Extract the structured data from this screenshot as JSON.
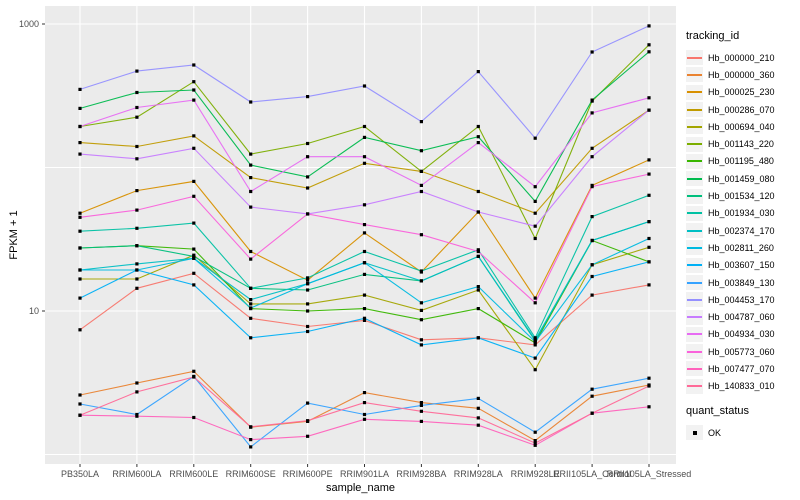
{
  "chart_data": {
    "type": "line",
    "xlabel": "sample_name",
    "ylabel": "FPKM + 1",
    "y_scale": "log10",
    "ylim": [
      0.83,
      1340
    ],
    "y_tick_labels": [
      "1000",
      "10"
    ],
    "y_tick_values": [
      1000,
      10
    ],
    "y_gridline_values": [
      1000,
      100,
      10,
      1
    ],
    "grid": "major-on",
    "panel_bg": "#EBEBEB",
    "grid_color": "#FFFFFF",
    "point_marker": "small-black-square",
    "point_color": "#000000",
    "legend_position": "right",
    "categories": [
      "PB350LA",
      "RRIM600LA",
      "RRIM600LE",
      "RRIM600SE",
      "RRIM600PE",
      "RRIM901LA",
      "RRIM928BA",
      "RRIM928LA",
      "RRIM928LE",
      "RRII105LA_Control",
      "RRII105LA_Stressed"
    ],
    "legend_title": "tracking_id",
    "legend2_title": "quant_status",
    "legend2_items": [
      {
        "label": "OK",
        "marker": "black-square"
      }
    ],
    "series": [
      {
        "name": "Hb_000000_210",
        "color": "#F8766D",
        "values": [
          7.4,
          14.4,
          18.3,
          8.9,
          7.8,
          8.6,
          6.3,
          6.5,
          5.8,
          12.9,
          15.2
        ]
      },
      {
        "name": "Hb_000000_360",
        "color": "#EA8331",
        "values": [
          2.6,
          3.15,
          3.8,
          1.55,
          1.7,
          2.7,
          2.3,
          2.1,
          1.25,
          2.55,
          3.05
        ]
      },
      {
        "name": "Hb_000025_230",
        "color": "#D89000",
        "values": [
          48,
          69,
          80,
          26,
          16.4,
          35,
          18.7,
          49,
          12.3,
          75,
          113
        ]
      },
      {
        "name": "Hb_000286_070",
        "color": "#C09B00",
        "values": [
          149,
          140,
          166,
          85,
          72,
          107,
          94,
          68,
          48,
          136,
          251
        ]
      },
      {
        "name": "Hb_000694_040",
        "color": "#A3A500",
        "values": [
          16.7,
          16.7,
          24.5,
          11.2,
          11.2,
          12.9,
          10.1,
          14,
          3.9,
          21,
          27.8
        ]
      },
      {
        "name": "Hb_001143_220",
        "color": "#7CAE00",
        "values": [
          193,
          224,
          396,
          124,
          147,
          193,
          94,
          193,
          32,
          290,
          716
        ]
      },
      {
        "name": "Hb_001195_480",
        "color": "#39B600",
        "values": [
          27.5,
          28.5,
          27,
          10.4,
          10,
          10.4,
          8.7,
          10.4,
          6.0,
          31,
          22
        ]
      },
      {
        "name": "Hb_001459_080",
        "color": "#00BB4E",
        "values": [
          258,
          333,
          347,
          104,
          86,
          162,
          131,
          164,
          58,
          295,
          640
        ]
      },
      {
        "name": "Hb_001534_120",
        "color": "#00BF7D",
        "values": [
          27.5,
          28.5,
          24,
          14.4,
          14,
          18,
          16.2,
          24,
          6.2,
          31,
          42
        ]
      },
      {
        "name": "Hb_001934_030",
        "color": "#00C1A3",
        "values": [
          36,
          37.7,
          41,
          14.4,
          17,
          26,
          19,
          26.7,
          6.5,
          45.5,
          64
        ]
      },
      {
        "name": "Hb_002374_170",
        "color": "#00BFC4",
        "values": [
          19.3,
          21.3,
          23.3,
          12,
          15.5,
          21.7,
          16.2,
          24,
          6.3,
          31,
          42
        ]
      },
      {
        "name": "Hb_002811_260",
        "color": "#00BAE0",
        "values": [
          19.3,
          19.3,
          23.3,
          10.5,
          15.5,
          21.7,
          11.4,
          14.8,
          6.1,
          21,
          32
        ]
      },
      {
        "name": "Hb_003607_150",
        "color": "#00B0F6",
        "values": [
          12.3,
          19.3,
          15.2,
          6.5,
          7.2,
          8.9,
          5.8,
          6.5,
          4.7,
          17.4,
          22
        ]
      },
      {
        "name": "Hb_003849_130",
        "color": "#35A2FF",
        "values": [
          2.25,
          1.9,
          3.5,
          1.13,
          2.28,
          1.9,
          2.2,
          2.46,
          1.43,
          2.85,
          3.4
        ]
      },
      {
        "name": "Hb_004453_170",
        "color": "#9590FF",
        "values": [
          350,
          470,
          518,
          286,
          312,
          370,
          209,
          466,
          160,
          638,
          970
        ]
      },
      {
        "name": "Hb_004787_060",
        "color": "#C77CFF",
        "values": [
          124,
          115,
          136,
          53,
          47.5,
          55,
          68,
          49,
          39,
          119,
          251
        ]
      },
      {
        "name": "Hb_004934_030",
        "color": "#E76BF3",
        "values": [
          193,
          262,
          295,
          68,
          119,
          119,
          75,
          149,
          73.5,
          240,
          306
        ]
      },
      {
        "name": "Hb_005773_060",
        "color": "#FA62DB",
        "values": [
          45,
          50.5,
          63,
          23,
          47.4,
          40,
          34,
          26,
          11.4,
          73.6,
          90
        ]
      },
      {
        "name": "Hb_007477_070",
        "color": "#FF62BC",
        "values": [
          1.88,
          1.85,
          1.81,
          1.27,
          1.34,
          1.76,
          1.7,
          1.6,
          1.16,
          1.94,
          2.15
        ]
      },
      {
        "name": "Hb_140833_010",
        "color": "#FF6A98",
        "values": [
          1.88,
          2.73,
          3.47,
          1.56,
          1.72,
          2.3,
          2.0,
          1.8,
          1.2,
          1.94,
          3.0
        ]
      }
    ]
  }
}
